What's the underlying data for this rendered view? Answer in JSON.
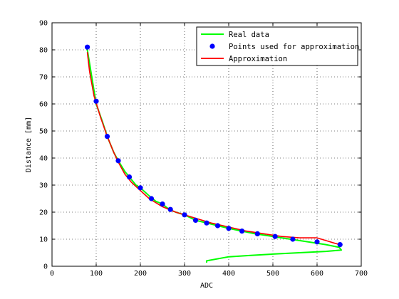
{
  "chart_data": {
    "type": "line",
    "title": "",
    "xlabel": "ADC",
    "ylabel": "Distance [mm]",
    "xlim": [
      0,
      700
    ],
    "ylim": [
      0,
      90
    ],
    "xticks": [
      0,
      100,
      200,
      300,
      400,
      500,
      600,
      700
    ],
    "yticks": [
      0,
      10,
      20,
      30,
      40,
      50,
      60,
      70,
      80,
      90
    ],
    "grid": true,
    "legend_position": "top-right",
    "series": [
      {
        "name": "Real data",
        "style": "line",
        "color": "#00ff00",
        "x": [
          80,
          90,
          100,
          115,
          125,
          140,
          150,
          165,
          175,
          190,
          200,
          220,
          235,
          250,
          265,
          280,
          300,
          325,
          350,
          375,
          400,
          430,
          460,
          500,
          540,
          580,
          620,
          650,
          655,
          620,
          560,
          500,
          450,
          400,
          350,
          350
        ],
        "y": [
          80,
          70,
          60,
          53,
          48,
          42,
          39,
          35,
          33,
          30,
          29,
          26,
          24,
          23,
          21,
          20,
          19,
          17,
          16,
          15,
          14,
          13,
          12,
          11,
          10,
          9,
          8,
          7,
          6,
          5.5,
          5,
          4.5,
          4,
          3.5,
          2,
          1.5
        ]
      },
      {
        "name": "Points used for approximation",
        "style": "markers",
        "color": "#0000ff",
        "x": [
          80,
          100,
          125,
          150,
          175,
          200,
          225,
          250,
          268,
          300,
          325,
          350,
          375,
          400,
          430,
          465,
          505,
          545,
          600,
          652
        ],
        "y": [
          81,
          61,
          48,
          39,
          33,
          29,
          25,
          23,
          21,
          19,
          17,
          16,
          15,
          14,
          13,
          12,
          11,
          10,
          9,
          8
        ]
      },
      {
        "name": "Approximation",
        "style": "line",
        "color": "#ff0000",
        "x": [
          80,
          85,
          95,
          110,
          125,
          140,
          150,
          165,
          180,
          200,
          220,
          250,
          280,
          300,
          330,
          360,
          400,
          440,
          480,
          520,
          560,
          600,
          620,
          640,
          652
        ],
        "y": [
          79,
          72,
          63,
          55,
          48,
          42,
          38.5,
          34,
          31,
          28,
          25,
          22,
          20,
          19,
          17.5,
          16,
          14.5,
          13,
          12,
          11,
          10.5,
          10.5,
          9.5,
          8.5,
          8
        ]
      }
    ]
  }
}
